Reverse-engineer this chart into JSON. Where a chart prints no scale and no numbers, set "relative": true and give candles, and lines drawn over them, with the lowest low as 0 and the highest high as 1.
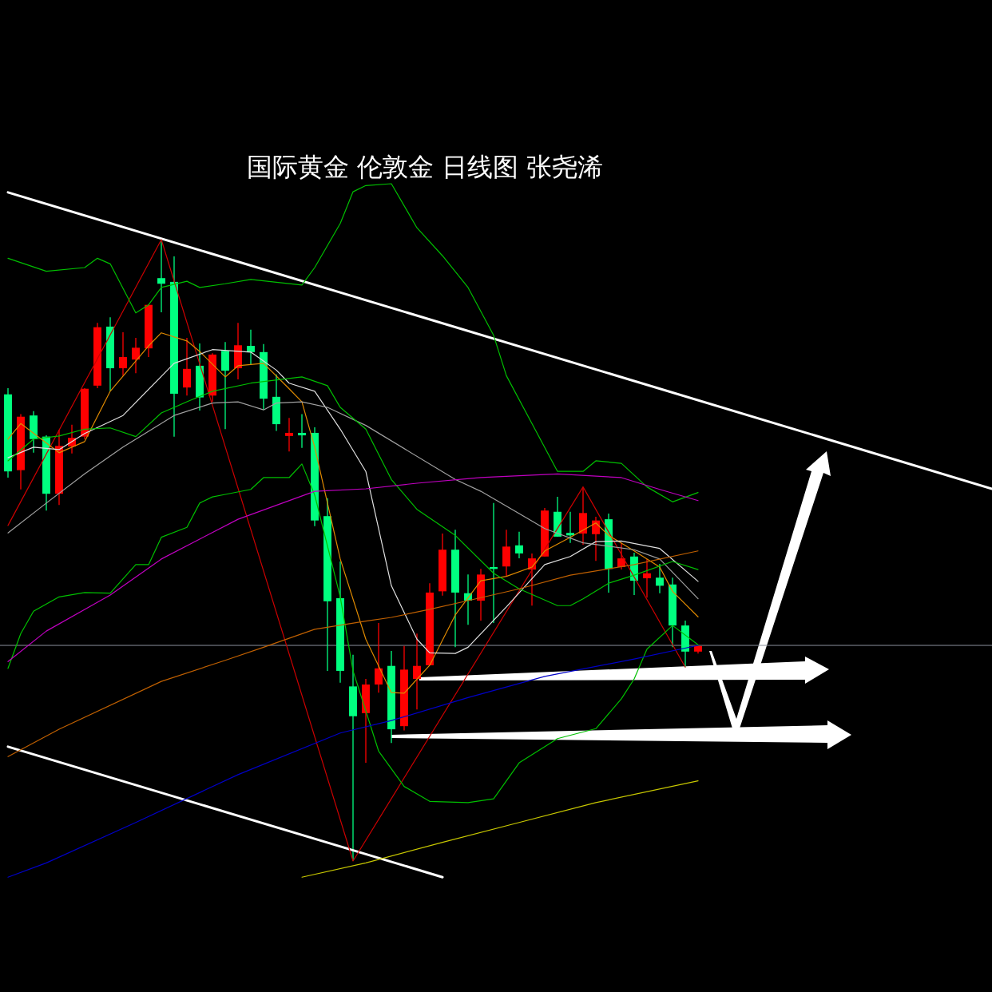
{
  "chart_data": {
    "type": "candlestick",
    "title": "国际黄金 伦敦金  日线图 张尧浠",
    "relative": true,
    "categories": [
      null,
      null,
      null,
      null,
      null,
      null,
      null,
      null,
      null,
      null,
      null,
      null,
      null,
      null,
      null,
      null,
      null,
      null,
      null,
      null,
      null,
      null,
      null,
      null,
      null,
      null,
      null,
      null,
      null,
      null,
      null,
      null,
      null,
      null,
      null,
      null,
      null,
      null,
      null,
      null,
      null,
      null,
      null,
      null,
      null,
      null,
      null,
      null,
      null,
      null,
      null,
      null,
      null,
      null,
      null,
      null,
      null,
      null,
      null,
      null,
      null,
      null,
      null,
      null,
      null,
      null,
      null,
      null,
      null,
      null,
      null,
      null,
      null,
      null,
      null,
      null,
      null,
      null
    ],
    "ohlc": [
      [
        0.751,
        0.761,
        0.617,
        0.627
      ],
      [
        0.629,
        0.719,
        0.598,
        0.715
      ],
      [
        0.717,
        0.724,
        0.657,
        0.679
      ],
      [
        0.683,
        0.685,
        0.564,
        0.591
      ],
      [
        0.591,
        0.694,
        0.573,
        0.668
      ],
      [
        0.667,
        0.702,
        0.656,
        0.681
      ],
      [
        0.683,
        0.761,
        0.679,
        0.76
      ],
      [
        0.765,
        0.866,
        0.761,
        0.859
      ],
      [
        0.86,
        0.875,
        0.756,
        0.793
      ],
      [
        0.793,
        0.851,
        0.781,
        0.811
      ],
      [
        0.807,
        0.842,
        0.785,
        0.826
      ],
      [
        0.825,
        0.896,
        0.811,
        0.895
      ],
      [
        0.938,
        1.0,
        0.883,
        0.929
      ],
      [
        0.932,
        0.973,
        0.683,
        0.752
      ],
      [
        0.762,
        0.842,
        0.749,
        0.792
      ],
      [
        0.797,
        0.833,
        0.725,
        0.746
      ],
      [
        0.749,
        0.817,
        0.739,
        0.815
      ],
      [
        0.821,
        0.835,
        0.695,
        0.789
      ],
      [
        0.793,
        0.866,
        0.775,
        0.83
      ],
      [
        0.829,
        0.855,
        0.799,
        0.819
      ],
      [
        0.819,
        0.832,
        0.726,
        0.744
      ],
      [
        0.747,
        0.783,
        0.692,
        0.703
      ],
      [
        0.684,
        0.713,
        0.659,
        0.689
      ],
      [
        0.689,
        0.719,
        0.665,
        0.685
      ],
      [
        0.689,
        0.698,
        0.539,
        0.548
      ],
      [
        0.555,
        0.584,
        0.306,
        0.418
      ],
      [
        0.423,
        0.482,
        0.287,
        0.306
      ],
      [
        0.281,
        0.332,
        0,
        0.233
      ],
      [
        0.238,
        0.293,
        0.158,
        0.284
      ],
      [
        0.284,
        0.383,
        0.271,
        0.31
      ],
      [
        0.314,
        0.338,
        0.19,
        0.212
      ],
      [
        0.217,
        0.346,
        0.21,
        0.308
      ],
      [
        0.293,
        0.366,
        0.244,
        0.314
      ],
      [
        0.315,
        0.447,
        0.315,
        0.432
      ],
      [
        0.434,
        0.527,
        0.427,
        0.501
      ],
      [
        0.501,
        0.533,
        0.344,
        0.432
      ],
      [
        0.431,
        0.461,
        0.38,
        0.419
      ],
      [
        0.419,
        0.47,
        0.387,
        0.461
      ],
      [
        0.473,
        0.576,
        0.383,
        0.47
      ],
      [
        0.474,
        0.533,
        0.458,
        0.506
      ],
      [
        0.508,
        0.53,
        0.487,
        0.495
      ],
      [
        0.469,
        0.495,
        0.411,
        0.487
      ],
      [
        0.49,
        0.568,
        0.49,
        0.564
      ],
      [
        0.562,
        0.586,
        0.522,
        0.522
      ],
      [
        0.528,
        0.562,
        0.512,
        0.524
      ],
      [
        0.527,
        0.602,
        0.509,
        0.56
      ],
      [
        0.526,
        0.554,
        0.483,
        0.548
      ],
      [
        0.55,
        0.559,
        0.432,
        0.47
      ],
      [
        0.473,
        0.512,
        0.469,
        0.487
      ],
      [
        0.49,
        0.496,
        0.428,
        0.451
      ],
      [
        0.455,
        0.486,
        0.424,
        0.463
      ],
      [
        0.456,
        0.478,
        0.431,
        0.443
      ],
      [
        0.445,
        0.456,
        0.344,
        0.379
      ],
      [
        0.379,
        0.387,
        0.312,
        0.337
      ],
      [
        0.337,
        0.346,
        0.334,
        0.346
      ],
      null,
      null,
      null,
      null,
      null,
      null,
      null,
      null,
      null,
      null,
      null,
      null,
      null,
      null,
      null,
      null,
      null,
      null,
      null,
      null,
      null,
      null,
      null
    ],
    "colors": [
      "#00ff80",
      "#ff0000",
      "#00ff80",
      "#00ff80",
      "#ff0000",
      "#ff0000",
      "#ff0000",
      "#ff0000",
      "#00ff80",
      "#ff0000",
      "#ff0000",
      "#ff0000",
      "#00ff80",
      "#00ff80",
      "#ff0000",
      "#00ff80",
      "#ff0000",
      "#00ff80",
      "#ff0000",
      "#00ff80",
      "#00ff80",
      "#00ff80",
      "#ff0000",
      "#00ff80",
      "#00ff80",
      "#00ff80",
      "#00ff80",
      "#00ff80",
      "#ff0000",
      "#ff0000",
      "#00ff80",
      "#ff0000",
      "#ff0000",
      "#ff0000",
      "#ff0000",
      "#00ff80",
      "#00ff80",
      "#ff0000",
      "#00ff80",
      "#ff0000",
      "#00ff80",
      "#ff0000",
      "#ff0000",
      "#00ff80",
      "#00ff80",
      "#ff0000",
      "#ff0000",
      "#00ff80",
      "#ff0000",
      "#00ff80",
      "#ff0000",
      "#00ff80",
      "#00ff80",
      "#00ff80",
      "#ff0000",
      null,
      null,
      null,
      null,
      null,
      null,
      null,
      null,
      null,
      null,
      null,
      null,
      null,
      null,
      null,
      null,
      null,
      null,
      null,
      null,
      null,
      null,
      null
    ],
    "series": [
      {
        "type": "line",
        "color": "#ffffff",
        "values": [
          1.076,
          null,
          null,
          null,
          null,
          null,
          null,
          null,
          null,
          null,
          null,
          null,
          null,
          null,
          null,
          null,
          null,
          null,
          null,
          null,
          null,
          null,
          null,
          null,
          null,
          null,
          null,
          null,
          null,
          null,
          null,
          null,
          null,
          null,
          null,
          null,
          null,
          null,
          null,
          null,
          null,
          null,
          null,
          null,
          null,
          null,
          null,
          null,
          null,
          null,
          null,
          null,
          null,
          null,
          null,
          null,
          null,
          null,
          null,
          null,
          null,
          null,
          null,
          null,
          null,
          null,
          null,
          null,
          null,
          null,
          null,
          null,
          null,
          null,
          null,
          null,
          null,
          0.599
        ]
      },
      {
        "type": "line",
        "color": "#ffffff",
        "values": [
          0.184,
          null,
          null,
          null,
          null,
          null,
          null,
          null,
          null,
          null,
          null,
          null,
          null,
          null,
          null,
          null,
          null,
          null,
          null,
          null,
          null,
          null,
          null,
          null,
          null,
          null,
          null,
          null,
          null,
          null,
          null,
          null,
          null,
          null,
          -0.026,
          null,
          null,
          null,
          null,
          null,
          null,
          null,
          null,
          null,
          null,
          null,
          null,
          null,
          null,
          null,
          null,
          null,
          null,
          null,
          null,
          null,
          null,
          null,
          null,
          null,
          null,
          null,
          null,
          null,
          null,
          null,
          null,
          null,
          null,
          null,
          null,
          null,
          null,
          null,
          null,
          null,
          null,
          null
        ]
      },
      {
        "type": "line",
        "color": "#cc0000",
        "values": [
          0.54,
          null,
          null,
          null,
          null,
          null,
          null,
          null,
          null,
          null,
          null,
          null,
          1.0,
          null,
          null,
          null,
          null,
          null,
          null,
          null,
          null,
          null,
          null,
          null,
          null,
          null,
          null,
          0,
          null,
          null,
          null,
          null,
          null,
          null,
          null,
          null,
          null,
          null,
          null,
          null,
          null,
          null,
          null,
          null,
          null,
          0.602,
          null,
          null,
          null,
          null,
          null,
          null,
          null,
          0.312,
          null,
          null,
          null,
          null,
          null,
          null,
          null,
          null,
          null,
          null,
          null,
          null,
          null,
          null,
          null,
          null,
          null,
          null,
          null,
          null,
          null,
          null,
          null,
          null
        ]
      },
      {
        "type": "line",
        "color": "#e08a00",
        "values": [
          0.679,
          0.704,
          null,
          null,
          0.657,
          null,
          0.675,
          null,
          0.756,
          null,
          null,
          0.829,
          0.85,
          null,
          0.837,
          0.82,
          null,
          0.779,
          0.797,
          null,
          0.801,
          null,
          0.76,
          0.739,
          0.666,
          null,
          0.486,
          null,
          0.357,
          null,
          0.271,
          0.27,
          null,
          0.315,
          null,
          0.396,
          null,
          0.451,
          null,
          0.458,
          null,
          0.473,
          0.499,
          null,
          0.521,
          null,
          0.544,
          0.524,
          null,
          0.499,
          null,
          0.473,
          0.434,
          null,
          0.393,
          null,
          null,
          null,
          null,
          null,
          null,
          null,
          null,
          null,
          null,
          null,
          null,
          null,
          null,
          null,
          null,
          null,
          null,
          null,
          null,
          null,
          null,
          null
        ]
      },
      {
        "type": "line",
        "color": "#e0e0e0",
        "values": [
          0.649,
          null,
          0.666,
          null,
          0.662,
          null,
          0.688,
          null,
          null,
          0.717,
          null,
          null,
          null,
          0.801,
          null,
          null,
          0.823,
          null,
          null,
          0.819,
          null,
          0.79,
          0.769,
          null,
          0.756,
          null,
          0.695,
          null,
          0.627,
          null,
          0.443,
          null,
          0.357,
          0.335,
          null,
          0.334,
          0.344,
          null,
          null,
          0.409,
          null,
          null,
          0.477,
          null,
          0.49,
          null,
          0.514,
          null,
          0.515,
          null,
          null,
          0.503,
          null,
          null,
          0.45,
          null,
          null,
          null,
          null,
          null,
          null,
          null,
          null,
          null,
          null,
          null,
          null,
          null,
          null,
          null,
          null,
          null,
          null,
          null,
          null,
          null,
          null,
          null
        ]
      },
      {
        "type": "line",
        "color": "#a0a0a0",
        "values": [
          0.528,
          null,
          null,
          0.576,
          null,
          null,
          0.623,
          null,
          null,
          0.666,
          null,
          null,
          null,
          0.717,
          null,
          null,
          0.737,
          null,
          0.739,
          null,
          0.726,
          0.737,
          null,
          0.739,
          null,
          0.73,
          null,
          null,
          0.701,
          null,
          null,
          null,
          null,
          null,
          null,
          0.614,
          null,
          0.595,
          null,
          null,
          0.559,
          null,
          0.535,
          null,
          null,
          0.512,
          null,
          null,
          null,
          0.501,
          null,
          0.486,
          null,
          null,
          0.422,
          null,
          null,
          null,
          null,
          null,
          null,
          null,
          null,
          null,
          null,
          null,
          null,
          null,
          null,
          null,
          null,
          null,
          null,
          null,
          null,
          null,
          null,
          null
        ]
      },
      {
        "type": "line",
        "color": "#00c000",
        "values": [
          0.97,
          null,
          null,
          0.949,
          null,
          null,
          0.955,
          0.97,
          0.961,
          null,
          0.882,
          0.895,
          0.923,
          null,
          0.933,
          0.923,
          null,
          0.929,
          null,
          0.936,
          null,
          null,
          null,
          0.927,
          0.955,
          null,
          1.026,
          1.077,
          1.087,
          null,
          1.09,
          null,
          1.019,
          null,
          0.974,
          null,
          0.923,
          null,
          0.846,
          0.781,
          null,
          0.704,
          null,
          0.627,
          null,
          0.627,
          0.644,
          null,
          0.64,
          null,
          0.602,
          null,
          0.578,
          null,
          0.593,
          null,
          null,
          null,
          null,
          null,
          null,
          null,
          null,
          null,
          null,
          null,
          null,
          null,
          null,
          null,
          null,
          null,
          null,
          null,
          null,
          null,
          null,
          null
        ]
      },
      {
        "type": "line",
        "color": "#00c000",
        "values": [
          0.644,
          null,
          0.679,
          null,
          0.684,
          null,
          0.695,
          null,
          0.697,
          null,
          0.683,
          null,
          0.721,
          null,
          0.739,
          null,
          0.756,
          null,
          null,
          0.769,
          null,
          null,
          null,
          0.779,
          null,
          0.765,
          0.73,
          null,
          0.695,
          null,
          0.614,
          null,
          0.566,
          null,
          null,
          0.524,
          null,
          null,
          0.463,
          null,
          0.438,
          null,
          null,
          0.411,
          0.411,
          0.422,
          null,
          0.447,
          null,
          0.46,
          null,
          null,
          0.482,
          null,
          0.469,
          null,
          null,
          null,
          null,
          null,
          null,
          null,
          null,
          null,
          null,
          null,
          null,
          null,
          null,
          null,
          null,
          null,
          null,
          null,
          null,
          null,
          null,
          null
        ]
      },
      {
        "type": "line",
        "color": "#00c000",
        "values": [
          0.31,
          0.366,
          0.402,
          null,
          0.425,
          null,
          0.432,
          null,
          0.431,
          null,
          0.477,
          0.477,
          0.521,
          null,
          0.537,
          0.576,
          0.586,
          0.59,
          null,
          0.598,
          0.617,
          null,
          0.617,
          0.639,
          0.589,
          null,
          0.425,
          0.306,
          null,
          0.177,
          null,
          0.12,
          null,
          0.096,
          null,
          null,
          0.094,
          null,
          0.1,
          null,
          0.158,
          null,
          null,
          0.197,
          null,
          null,
          0.213,
          null,
          0.261,
          0.293,
          0.341,
          null,
          0.379,
          null,
          0.348,
          null,
          null,
          null,
          null,
          null,
          null,
          null,
          null,
          null,
          null,
          null,
          null,
          null,
          null,
          null,
          null,
          null,
          null,
          null,
          null,
          null,
          null,
          null
        ]
      },
      {
        "type": "line",
        "color": "#c000c0",
        "values": [
          0.321,
          null,
          null,
          0.37,
          null,
          null,
          null,
          null,
          0.428,
          null,
          null,
          null,
          0.486,
          null,
          null,
          null,
          null,
          null,
          0.55,
          null,
          null,
          null,
          null,
          null,
          0.595,
          null,
          null,
          null,
          0.599,
          null,
          null,
          null,
          0.608,
          null,
          null,
          null,
          null,
          0.617,
          null,
          null,
          null,
          null,
          null,
          0.623,
          null,
          null,
          null,
          null,
          0.617,
          null,
          null,
          0.598,
          null,
          null,
          0.58,
          null,
          null,
          null,
          null,
          null,
          null,
          null,
          null,
          null,
          null,
          null,
          null,
          null,
          null,
          null,
          null,
          null,
          null,
          null,
          null,
          null,
          null,
          null
        ]
      },
      {
        "type": "line",
        "color": "#c06000",
        "values": [
          0.168,
          null,
          null,
          null,
          0.212,
          null,
          null,
          null,
          null,
          null,
          null,
          null,
          0.289,
          null,
          null,
          null,
          null,
          0.323,
          null,
          null,
          0.344,
          null,
          null,
          null,
          0.373,
          null,
          null,
          null,
          0.386,
          null,
          0.392,
          null,
          null,
          0.405,
          null,
          null,
          0.419,
          null,
          null,
          null,
          0.438,
          null,
          null,
          null,
          0.46,
          null,
          null,
          null,
          null,
          0.477,
          null,
          null,
          null,
          null,
          0.499,
          null,
          null,
          null,
          null,
          null,
          null,
          null,
          null,
          null,
          null,
          null,
          null,
          null,
          null,
          null,
          null,
          null,
          null,
          null,
          null,
          null,
          null,
          null
        ]
      },
      {
        "type": "line",
        "color": "#0000c8",
        "values": [
          -0.026,
          null,
          null,
          -0.003,
          null,
          null,
          null,
          null,
          null,
          null,
          0.062,
          null,
          null,
          null,
          null,
          null,
          null,
          null,
          0.139,
          null,
          null,
          null,
          null,
          null,
          null,
          null,
          0.206,
          null,
          null,
          null,
          0.226,
          null,
          null,
          null,
          null,
          null,
          0.263,
          null,
          null,
          null,
          null,
          null,
          0.297,
          null,
          null,
          null,
          null,
          null,
          null,
          0.325,
          null,
          null,
          null,
          null,
          0.347,
          null,
          null,
          null,
          null,
          null,
          null,
          null,
          null,
          null,
          null,
          null,
          null,
          null,
          null,
          null,
          null,
          null,
          null,
          null,
          null,
          null,
          null,
          null
        ]
      },
      {
        "type": "line",
        "color": "#c8c800",
        "values": [
          null,
          null,
          null,
          null,
          null,
          null,
          null,
          null,
          null,
          null,
          null,
          null,
          null,
          null,
          null,
          null,
          null,
          null,
          null,
          null,
          null,
          null,
          null,
          -0.026,
          null,
          null,
          null,
          null,
          -0.003,
          null,
          null,
          null,
          null,
          null,
          0.03,
          null,
          null,
          null,
          null,
          null,
          0.062,
          null,
          null,
          null,
          null,
          null,
          0.094,
          null,
          null,
          null,
          null,
          null,
          null,
          null,
          0.129,
          null,
          null,
          null,
          null,
          null,
          null,
          null,
          null,
          null,
          null,
          null,
          null,
          null,
          null,
          null,
          null,
          null,
          null,
          null,
          null,
          null,
          null,
          null
        ]
      }
    ],
    "ref_lines": [
      {
        "axis": "y",
        "value": 0.347,
        "color": "#8a8f9a"
      }
    ]
  }
}
